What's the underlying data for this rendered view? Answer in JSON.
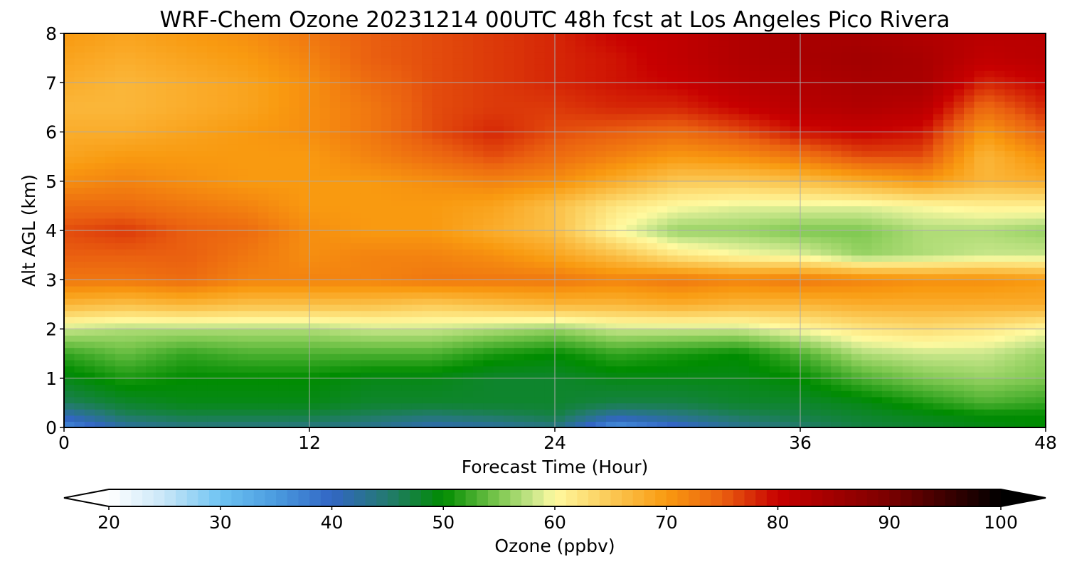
{
  "chart_data": {
    "type": "heatmap",
    "title": "WRF-Chem Ozone  20231214 00UTC 48h fcst at Los Angeles Pico Rivera",
    "xlabel": "Forecast Time (Hour)",
    "ylabel": "Alt AGL (km)",
    "xlim": [
      0,
      48
    ],
    "ylim": [
      0,
      8
    ],
    "xticks": [
      "0",
      "12",
      "24",
      "36",
      "48"
    ],
    "yticks": [
      "0",
      "1",
      "2",
      "3",
      "4",
      "5",
      "6",
      "7",
      "8"
    ],
    "grid": true,
    "x": [
      0,
      3,
      6,
      9,
      12,
      15,
      18,
      21,
      24,
      27,
      30,
      33,
      36,
      39,
      42,
      45,
      48
    ],
    "y": [
      0,
      0.25,
      0.5,
      1,
      1.5,
      2,
      2.5,
      3,
      3.5,
      4,
      4.5,
      5,
      5.5,
      6,
      6.5,
      7,
      7.5,
      8
    ],
    "z": [
      [
        36,
        42,
        44,
        44,
        44,
        43,
        41,
        42,
        44,
        35,
        39,
        43,
        45,
        47,
        48,
        49,
        50
      ],
      [
        41,
        46,
        47,
        47,
        47,
        46,
        45,
        46,
        47,
        42,
        44,
        46,
        47,
        48,
        49,
        50,
        50
      ],
      [
        46,
        48,
        49,
        49,
        49,
        48,
        48,
        48,
        48,
        47,
        47,
        48,
        48,
        49,
        51,
        53,
        52
      ],
      [
        49,
        51,
        50,
        50,
        50,
        49,
        49,
        48,
        48,
        49,
        49,
        49,
        50,
        53,
        55,
        56,
        55
      ],
      [
        52,
        54,
        52,
        53,
        53,
        53,
        53,
        51,
        50,
        52,
        51,
        50,
        53,
        57,
        58,
        58,
        56
      ],
      [
        58,
        57,
        57,
        57,
        57,
        58,
        58,
        57,
        56,
        58,
        58,
        58,
        60,
        62,
        63,
        62,
        60
      ],
      [
        67,
        66,
        67,
        66,
        66,
        66,
        65,
        66,
        67,
        67,
        68,
        67,
        67,
        68,
        68,
        68,
        68
      ],
      [
        73,
        73,
        74,
        72,
        72,
        72,
        73,
        73,
        73,
        72,
        73,
        72,
        73,
        72,
        71,
        71,
        70
      ],
      [
        75,
        75,
        75,
        73,
        71,
        72,
        72,
        71,
        69,
        66,
        62,
        60,
        59,
        56,
        57,
        58,
        58
      ],
      [
        76,
        77,
        75,
        74,
        71,
        70,
        70,
        68,
        66,
        60,
        56,
        56,
        55,
        55,
        57,
        57,
        56
      ],
      [
        74,
        74,
        73,
        72,
        70,
        70,
        70,
        69,
        66,
        62,
        60,
        59,
        59,
        59,
        60,
        61,
        61
      ],
      [
        71,
        72,
        71,
        70,
        70,
        70,
        71,
        72,
        71,
        68,
        65,
        65,
        66,
        68,
        70,
        67,
        68
      ],
      [
        69,
        70,
        70,
        70,
        70,
        72,
        74,
        76,
        74,
        72,
        70,
        71,
        73,
        76,
        76,
        67,
        71
      ],
      [
        68,
        68,
        69,
        70,
        71,
        73,
        76,
        78,
        76,
        75,
        74,
        76,
        79,
        80,
        79,
        70,
        75
      ],
      [
        67,
        67,
        68,
        69,
        71,
        73,
        76,
        77,
        77,
        78,
        78,
        80,
        82,
        83,
        82,
        74,
        78
      ],
      [
        68,
        67,
        68,
        69,
        71,
        74,
        76,
        77,
        78,
        79,
        80,
        82,
        83,
        84,
        84,
        78,
        80
      ],
      [
        69,
        68,
        69,
        70,
        72,
        75,
        76,
        77,
        78,
        79,
        81,
        83,
        84,
        85,
        84,
        81,
        82
      ],
      [
        70,
        69,
        70,
        71,
        73,
        75,
        76,
        77,
        78,
        80,
        81,
        83,
        84,
        84,
        83,
        82,
        82
      ]
    ],
    "colorbar": {
      "label": "Ozone  (ppbv)",
      "ticks": [
        "20",
        "30",
        "40",
        "50",
        "60",
        "70",
        "80",
        "90",
        "100"
      ],
      "range": [
        20,
        100
      ],
      "extend": "both",
      "stops": [
        {
          "v": 20,
          "c": "#ffffff"
        },
        {
          "v": 25,
          "c": "#c8e6f8"
        },
        {
          "v": 30,
          "c": "#6ec3f2"
        },
        {
          "v": 35,
          "c": "#4a9bdf"
        },
        {
          "v": 40,
          "c": "#3266c4"
        },
        {
          "v": 45,
          "c": "#247a70"
        },
        {
          "v": 50,
          "c": "#008c00"
        },
        {
          "v": 55,
          "c": "#7ec850"
        },
        {
          "v": 58,
          "c": "#c8e68a"
        },
        {
          "v": 60,
          "c": "#fffaa0"
        },
        {
          "v": 65,
          "c": "#fbc955"
        },
        {
          "v": 70,
          "c": "#f99a10"
        },
        {
          "v": 75,
          "c": "#ea6010"
        },
        {
          "v": 80,
          "c": "#c80000"
        },
        {
          "v": 90,
          "c": "#7a0000"
        },
        {
          "v": 100,
          "c": "#000000"
        }
      ]
    }
  }
}
